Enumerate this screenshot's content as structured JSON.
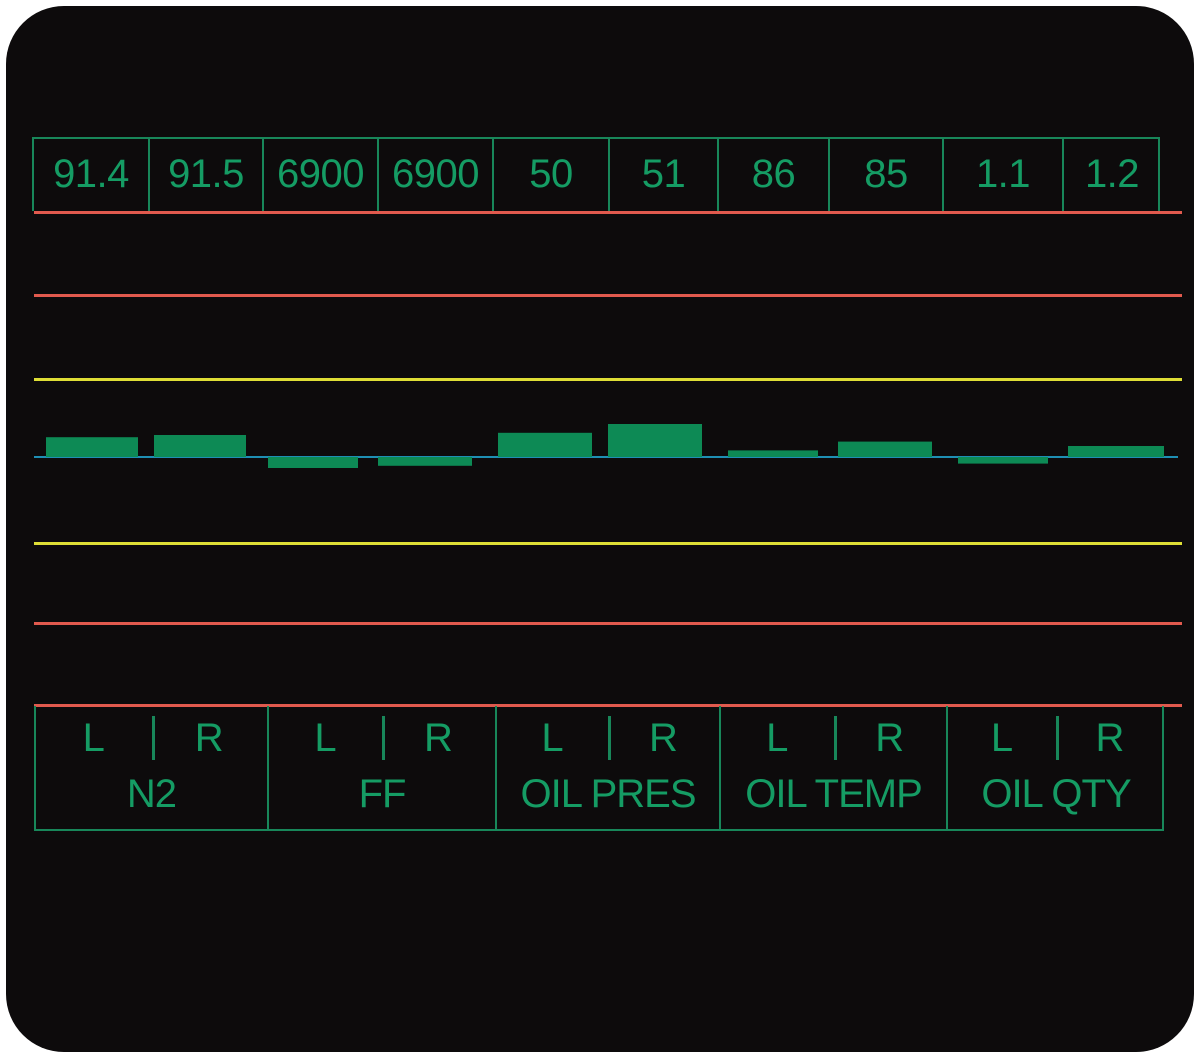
{
  "display": {
    "readouts": [
      "91.4",
      "91.5",
      "6900",
      "6900",
      "50",
      "51",
      "86",
      "85",
      "1.1",
      "1.2"
    ],
    "groups": [
      {
        "name": "N2",
        "left": "L",
        "right": "R"
      },
      {
        "name": "FF",
        "left": "L",
        "right": "R"
      },
      {
        "name": "OIL PRES",
        "left": "L",
        "right": "R"
      },
      {
        "name": "OIL TEMP",
        "left": "L",
        "right": "R"
      },
      {
        "name": "OIL QTY",
        "left": "L",
        "right": "R"
      }
    ],
    "deviations": [
      0.9,
      1.0,
      -0.5,
      -0.4,
      1.1,
      1.5,
      0.3,
      0.7,
      -0.3,
      0.5
    ],
    "colors": {
      "background": "#0d0b0c",
      "text": "#159c64",
      "frame": "#18875a",
      "bar": "#0d8a55",
      "red_limit": "#e15a4e",
      "yellow_limit": "#dede36",
      "baseline": "#1e8fb4"
    }
  }
}
